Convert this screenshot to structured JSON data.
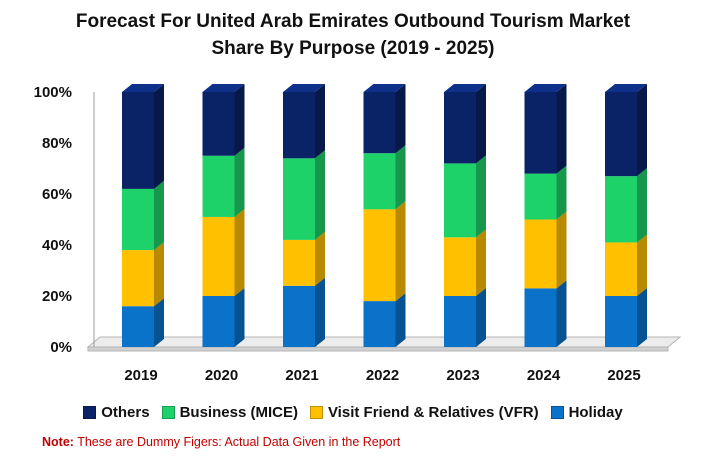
{
  "title_line1": "Forecast For United Arab Emirates Outbound Tourism Market",
  "title_line2": "Share By Purpose (2019 - 2025)",
  "note_label": "Note:",
  "note_text": "These are Dummy Figers: Actual Data Given in the Report",
  "colors": {
    "Holiday": "#0a72c9",
    "Visit Friend & Relatives (VFR)": "#ffc000",
    "Business (MICE)": "#1ed26a",
    "Others": "#0a2366"
  },
  "legend": [
    {
      "label": "Others",
      "color": "#0a2366"
    },
    {
      "label": "Business (MICE)",
      "color": "#1ed26a"
    },
    {
      "label": "Visit Friend & Relatives (VFR)",
      "color": "#ffc000"
    },
    {
      "label": "Holiday",
      "color": "#0a72c9"
    }
  ],
  "chart_data": {
    "type": "bar",
    "stacked": true,
    "categories": [
      "2019",
      "2020",
      "2021",
      "2022",
      "2023",
      "2024",
      "2025"
    ],
    "series": [
      {
        "name": "Holiday",
        "values": [
          16,
          20,
          24,
          18,
          20,
          23,
          20
        ]
      },
      {
        "name": "Visit Friend & Relatives (VFR)",
        "values": [
          22,
          31,
          18,
          36,
          23,
          27,
          21
        ]
      },
      {
        "name": "Business (MICE)",
        "values": [
          24,
          24,
          32,
          22,
          29,
          18,
          26
        ]
      },
      {
        "name": "Others",
        "values": [
          38,
          25,
          26,
          24,
          28,
          32,
          33
        ]
      }
    ],
    "ylim": [
      0,
      100
    ],
    "yticks": [
      "0%",
      "20%",
      "40%",
      "60%",
      "80%",
      "100%"
    ],
    "grid": false,
    "legend_position": "bottom"
  }
}
